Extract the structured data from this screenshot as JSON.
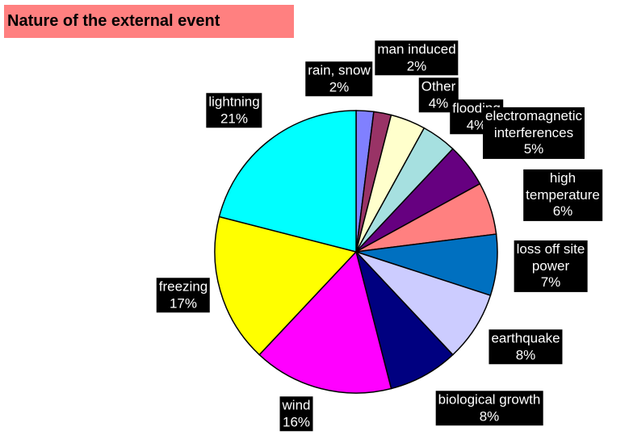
{
  "chart_data": {
    "type": "pie",
    "title": "Nature of the external event",
    "categories": [
      "rain, snow",
      "man induced",
      "Other",
      "flooding",
      "electromagnetic\ninterferences",
      "high temperature",
      "loss off site\npower",
      "earthquake",
      "biological growth",
      "wind",
      "freezing",
      "lightning"
    ],
    "values": [
      2,
      2,
      4,
      4,
      5,
      6,
      7,
      8,
      8,
      16,
      17,
      21
    ],
    "value_labels": [
      "2%",
      "2%",
      "4%",
      "4%",
      "5%",
      "6%",
      "7%",
      "8%",
      "8%",
      "16%",
      "17%",
      "21%"
    ],
    "colors": [
      "#8080ff",
      "#993366",
      "#ffffcc",
      "#a6e0e0",
      "#660080",
      "#ff8080",
      "#0070c0",
      "#ccccff",
      "#000080",
      "#ff00ff",
      "#ffff00",
      "#00ffff"
    ]
  }
}
